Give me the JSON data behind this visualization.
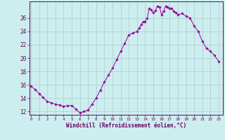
{
  "hours_fine": [
    0,
    0.5,
    1,
    1.5,
    2,
    2.5,
    3,
    3.5,
    4,
    4.5,
    5,
    5.5,
    6,
    6.5,
    7,
    7.5,
    8,
    8.5,
    9,
    9.5,
    10,
    10.5,
    11,
    11.5,
    12,
    12.5,
    13,
    13.25,
    13.5,
    13.75,
    14,
    14.25,
    14.5,
    14.75,
    15,
    15.25,
    15.5,
    15.75,
    16,
    16.25,
    16.5,
    16.75,
    17,
    17.25,
    17.5,
    17.75,
    18,
    18.5,
    19,
    19.5,
    20,
    20.5,
    21,
    21.5,
    22,
    22.5,
    23
  ],
  "windchill_fine": [
    15.8,
    15.3,
    14.7,
    14.1,
    13.5,
    13.3,
    13.1,
    12.95,
    12.8,
    12.85,
    12.9,
    12.35,
    11.8,
    12.0,
    12.2,
    13.1,
    14.0,
    15.2,
    16.4,
    17.45,
    18.5,
    19.75,
    21.0,
    22.25,
    23.5,
    23.75,
    24.0,
    24.5,
    25.0,
    25.5,
    25.5,
    26.0,
    27.5,
    27.2,
    26.8,
    27.1,
    27.8,
    27.7,
    26.5,
    27.0,
    27.8,
    27.65,
    27.5,
    27.5,
    27.0,
    26.8,
    26.5,
    26.7,
    26.3,
    26.0,
    24.8,
    24.0,
    22.5,
    21.5,
    21.0,
    20.4,
    19.5
  ],
  "line_color": "#990099",
  "marker_color": "#990099",
  "bg_color": "#cceeee",
  "grid_color": "#aacccc",
  "axis_color": "#660066",
  "xlabel": "Windchill (Refroidissement éolien,°C)",
  "ylim": [
    11.5,
    28.5
  ],
  "xlim": [
    -0.2,
    23.5
  ],
  "yticks": [
    12,
    14,
    16,
    18,
    20,
    22,
    24,
    26
  ],
  "xticks": [
    0,
    1,
    2,
    3,
    4,
    5,
    6,
    7,
    8,
    9,
    10,
    11,
    12,
    13,
    14,
    15,
    16,
    17,
    18,
    19,
    20,
    21,
    22,
    23
  ]
}
